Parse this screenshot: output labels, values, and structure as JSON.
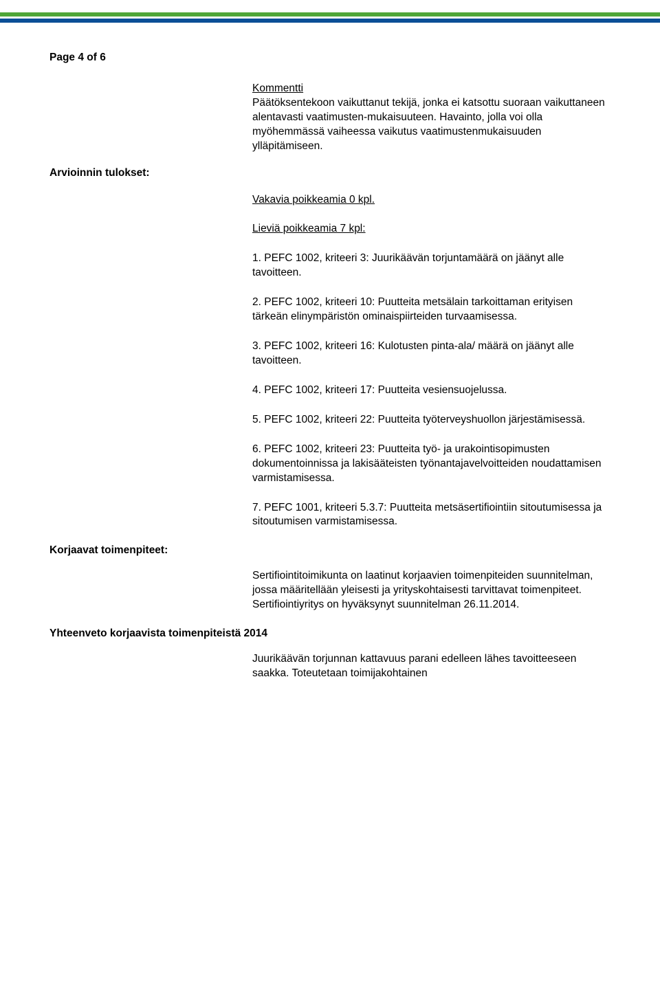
{
  "header": {
    "bar_colors": {
      "green": "#4fa638",
      "blue": "#0b4f96"
    }
  },
  "page_label": "Page 4 of 6",
  "comment": {
    "title": "Kommentti",
    "body": "Päätöksentekoon vaikuttanut tekijä, jonka ei katsottu suoraan vaikuttaneen alentavasti vaatimusten-mukaisuuteen. Havainto, jolla voi olla myöhemmässä vaiheessa vaikutus vaatimustenmukaisuuden ylläpitämiseen."
  },
  "assessment": {
    "label": "Arvioinnin tulokset:",
    "severe": "Vakavia poikkeamia 0 kpl.",
    "minor_label": "Lieviä poikkeamia 7 kpl:",
    "items": [
      "1. PEFC 1002, kriteeri 3: Juurikäävän torjuntamäärä on jäänyt alle tavoitteen.",
      "2. PEFC 1002, kriteeri 10: Puutteita metsälain tarkoittaman erityisen tärkeän elinympäristön ominaispiirteiden turvaamisessa.",
      "3. PEFC 1002, kriteeri 16: Kulotusten pinta-ala/ määrä on jäänyt alle tavoitteen.",
      "4. PEFC 1002, kriteeri 17: Puutteita vesiensuojelussa.",
      "5. PEFC 1002, kriteeri 22: Puutteita työterveyshuollon järjestämisessä.",
      "6. PEFC 1002, kriteeri 23: Puutteita työ- ja urakointisopimusten dokumentoinnissa ja lakisääteisten työnantajavelvoitteiden noudattamisen varmistamisessa.",
      "7. PEFC 1001, kriteeri 5.3.7: Puutteita metsäsertifiointiin sitoutumisessa ja sitoutumisen varmistamisessa."
    ]
  },
  "corrective": {
    "label": "Korjaavat toimenpiteet:",
    "body": "Sertifiointitoimikunta on laatinut korjaavien toimenpiteiden suunnitelman, jossa määritellään yleisesti ja yrityskohtaisesti tarvittavat toimenpiteet. Sertifiointiyritys on hyväksynyt suunnitelman 26.11.2014."
  },
  "summary": {
    "label": "Yhteenveto korjaavista toimenpiteistä 2014",
    "body": "Juurikäävän torjunnan kattavuus parani edelleen lähes tavoitteeseen saakka. Toteutetaan toimijakohtainen"
  }
}
